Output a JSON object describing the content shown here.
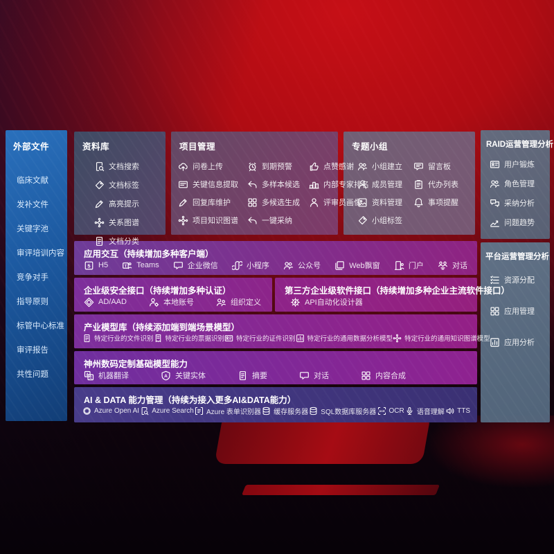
{
  "colors": {
    "accent_red": "#c00d13",
    "sidebar_blue": "#1c59a0",
    "panel_purple": "#7d2f9c",
    "band_indigo": "#483c8a"
  },
  "sidebar": {
    "title": "外部文件",
    "items": [
      "临床文献",
      "发补文件",
      "关键字池",
      "审评培训内容",
      "竞争对手",
      "指导原则",
      "标管中心标准",
      "审评报告",
      "共性问题"
    ]
  },
  "panels": {
    "datalib": {
      "title": "资料库",
      "items": [
        {
          "icon": "doc-search",
          "label": "文档搜索"
        },
        {
          "icon": "tag",
          "label": "文档标签"
        },
        {
          "icon": "pen",
          "label": "高亮提示"
        },
        {
          "icon": "network",
          "label": "关系图谱"
        },
        {
          "icon": "doc",
          "label": "文档分类"
        }
      ]
    },
    "project": {
      "title": "项目管理",
      "items": [
        {
          "icon": "cloud-upload",
          "label": "问卷上传"
        },
        {
          "icon": "card",
          "label": "关键信息提取"
        },
        {
          "icon": "pen",
          "label": "回复库维护"
        },
        {
          "icon": "network",
          "label": "项目知识图谱"
        },
        {
          "icon": "alarm",
          "label": "到期预警"
        },
        {
          "icon": "reply",
          "label": "多样本候选"
        },
        {
          "icon": "grid",
          "label": "多候选生成"
        },
        {
          "icon": "reply",
          "label": "一键采纳"
        },
        {
          "icon": "thumb",
          "label": "点赞感谢"
        },
        {
          "icon": "podium",
          "label": "内部专家排名"
        },
        {
          "icon": "person",
          "label": "评审员画像"
        }
      ]
    },
    "topic": {
      "title": "专题小组",
      "items": [
        {
          "icon": "people",
          "label": "小组建立"
        },
        {
          "icon": "person",
          "label": "成员管理"
        },
        {
          "icon": "album",
          "label": "资料管理"
        },
        {
          "icon": "tag",
          "label": "小组标签"
        },
        {
          "icon": "bbs",
          "label": "留言板"
        },
        {
          "icon": "clipboard",
          "label": "代办列表"
        },
        {
          "icon": "bell",
          "label": "事项提醒"
        }
      ]
    },
    "raid": {
      "title": "RAID运营管理分析",
      "items": [
        {
          "icon": "idcard",
          "label": "用户锻炼"
        },
        {
          "icon": "people",
          "label": "角色管理"
        },
        {
          "icon": "qa",
          "label": "采纳分析"
        },
        {
          "icon": "trend",
          "label": "问题趋势"
        }
      ]
    },
    "platform": {
      "title": "平台运营管理分析",
      "items": [
        {
          "icon": "list",
          "label": "资源分配"
        },
        {
          "icon": "grid",
          "label": "应用管理"
        },
        {
          "icon": "chart-box",
          "label": "应用分析"
        }
      ]
    }
  },
  "bands": {
    "interaction": {
      "title": "应用交互（持续增加多种客户端）",
      "items": [
        {
          "icon": "h5",
          "label": "H5"
        },
        {
          "icon": "teams",
          "label": "Teams"
        },
        {
          "icon": "chat",
          "label": "企业微信"
        },
        {
          "icon": "scurve",
          "label": "小程序"
        },
        {
          "icon": "people",
          "label": "公众号"
        },
        {
          "icon": "window",
          "label": "Web飘窗"
        },
        {
          "icon": "door",
          "label": "门户"
        },
        {
          "icon": "dialog",
          "label": "对话"
        }
      ]
    },
    "security": {
      "title": "企业级安全接口（持续增加多种认证）",
      "items": [
        {
          "icon": "shield-d",
          "label": "AD/AAD"
        },
        {
          "icon": "person-gear",
          "label": "本地账号"
        },
        {
          "icon": "org",
          "label": "组织定义"
        }
      ]
    },
    "thirdparty": {
      "title": "第三方企业级软件接口（持续增加多种企业主流软件接口）",
      "items": [
        {
          "icon": "api",
          "label": "API自动化设计器"
        }
      ]
    },
    "models": {
      "title": "产业模型库（持续添加端到端场景模型）",
      "items": [
        {
          "icon": "doc",
          "label": "特定行业的文件识别"
        },
        {
          "icon": "receipt",
          "label": "特定行业的票据识别"
        },
        {
          "icon": "idcard",
          "label": "特定行业的证件识别"
        },
        {
          "icon": "chart-box",
          "label": "特定行业的通用数据分析模型"
        },
        {
          "icon": "network",
          "label": "特定行业的通用知识图谱模型"
        }
      ]
    },
    "base": {
      "title": "神州数码定制基础模型能力",
      "items": [
        {
          "icon": "translate",
          "label": "机器翻译"
        },
        {
          "icon": "a-shield",
          "label": "关键实体"
        },
        {
          "icon": "doc",
          "label": "摘要"
        },
        {
          "icon": "chat",
          "label": "对话"
        },
        {
          "icon": "grid",
          "label": "内容合成"
        }
      ]
    },
    "aidata": {
      "title": "AI & DATA 能力管理（持续为接入更多AI&DATA能力）",
      "items": [
        {
          "icon": "openai",
          "label": "Azure Open AI"
        },
        {
          "icon": "doc-search",
          "label": "Azure Search"
        },
        {
          "icon": "bracket",
          "label": "Azure 表单识别器"
        },
        {
          "icon": "db",
          "label": "缓存服务器"
        },
        {
          "icon": "db",
          "label": "SQL数据库服务器"
        },
        {
          "icon": "ocr",
          "label": "OCR"
        },
        {
          "icon": "mic",
          "label": "语音理解"
        },
        {
          "icon": "tts",
          "label": "TTS"
        }
      ]
    }
  }
}
